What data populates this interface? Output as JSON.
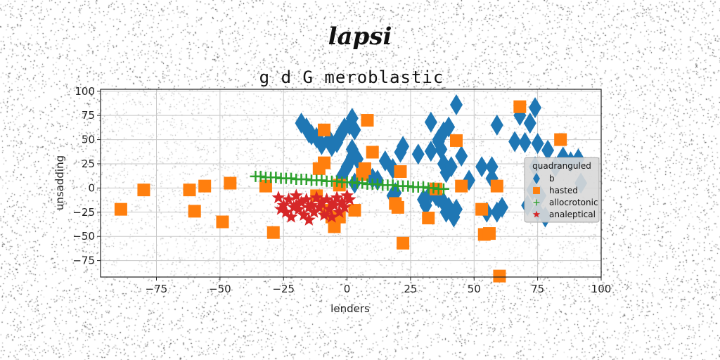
{
  "suptitle": "lapsi",
  "chart_data": {
    "type": "scatter",
    "title": "g d G meroblastic",
    "xlabel": "lenders",
    "ylabel": "unsadding",
    "xlim": [
      -97,
      100
    ],
    "ylim": [
      -92,
      102
    ],
    "xticks": [
      -75,
      -50,
      -25,
      0,
      25,
      50,
      75,
      100
    ],
    "yticks": [
      -75,
      -50,
      -25,
      0,
      25,
      50,
      75,
      100
    ],
    "grid": true,
    "legend": {
      "title": "quadranguled",
      "placement": "right"
    },
    "series": [
      {
        "name": "b",
        "marker": "diamond",
        "color": "#1f77b4",
        "points": [
          [
            -18,
            67
          ],
          [
            -16,
            62
          ],
          [
            -15,
            57
          ],
          [
            -14,
            55
          ],
          [
            -12,
            52
          ],
          [
            -10,
            45
          ],
          [
            -7,
            50
          ],
          [
            -6,
            43
          ],
          [
            -4,
            47
          ],
          [
            -3,
            53
          ],
          [
            -2,
            58
          ],
          [
            -1,
            62
          ],
          [
            1,
            65
          ],
          [
            2,
            40
          ],
          [
            2,
            32
          ],
          [
            0,
            22
          ],
          [
            -2,
            12
          ],
          [
            3,
            5
          ],
          [
            2,
            72
          ],
          [
            3,
            60
          ],
          [
            4,
            30
          ],
          [
            15,
            28
          ],
          [
            18,
            20
          ],
          [
            21,
            37
          ],
          [
            22,
            43
          ],
          [
            28,
            35
          ],
          [
            33,
            68
          ],
          [
            33,
            38
          ],
          [
            36,
            50
          ],
          [
            36,
            48
          ],
          [
            37,
            40
          ],
          [
            38,
            58
          ],
          [
            38,
            25
          ],
          [
            39,
            16
          ],
          [
            40,
            63
          ],
          [
            43,
            86
          ],
          [
            41,
            22
          ],
          [
            45,
            33
          ],
          [
            48,
            8
          ],
          [
            53,
            22
          ],
          [
            59,
            65
          ],
          [
            57,
            22
          ],
          [
            57,
            10
          ],
          [
            66,
            48
          ],
          [
            68,
            75
          ],
          [
            70,
            47
          ],
          [
            72,
            67
          ],
          [
            74,
            83
          ],
          [
            75,
            46
          ],
          [
            74,
            22
          ],
          [
            79,
            39
          ],
          [
            82,
            22
          ],
          [
            85,
            32
          ],
          [
            88,
            27
          ],
          [
            91,
            30
          ],
          [
            92,
            5
          ],
          [
            73,
            -2
          ],
          [
            76,
            -8
          ],
          [
            78,
            -30
          ],
          [
            75,
            -24
          ],
          [
            71,
            -18
          ],
          [
            33,
            -5
          ],
          [
            35,
            -8
          ],
          [
            36,
            -10
          ],
          [
            38,
            -15
          ],
          [
            39,
            -25
          ],
          [
            40,
            -20
          ],
          [
            42,
            -30
          ],
          [
            43,
            -22
          ],
          [
            30,
            -12
          ],
          [
            31,
            -18
          ],
          [
            18,
            -8
          ],
          [
            19,
            -5
          ],
          [
            55,
            -25
          ],
          [
            59,
            -25
          ],
          [
            61,
            -20
          ],
          [
            10,
            10
          ],
          [
            12,
            8
          ]
        ]
      },
      {
        "name": "hasted",
        "marker": "square",
        "color": "#ff7f0e",
        "points": [
          [
            -89,
            -22
          ],
          [
            -80,
            -2
          ],
          [
            -62,
            -2
          ],
          [
            -60,
            -24
          ],
          [
            -56,
            2
          ],
          [
            -49,
            -35
          ],
          [
            -46,
            5
          ],
          [
            -32,
            2
          ],
          [
            -29,
            -46
          ],
          [
            -12,
            -8
          ],
          [
            -11,
            20
          ],
          [
            -9,
            26
          ],
          [
            -9,
            60
          ],
          [
            -8,
            -23
          ],
          [
            -5,
            -40
          ],
          [
            -6,
            -30
          ],
          [
            -3,
            -30
          ],
          [
            -3,
            3
          ],
          [
            3,
            -23
          ],
          [
            6,
            14
          ],
          [
            7,
            20
          ],
          [
            8,
            70
          ],
          [
            10,
            37
          ],
          [
            19,
            -16
          ],
          [
            20,
            -20
          ],
          [
            21,
            17
          ],
          [
            22,
            -57
          ],
          [
            32,
            -31
          ],
          [
            35,
            -1
          ],
          [
            43,
            49
          ],
          [
            45,
            2
          ],
          [
            53,
            -22
          ],
          [
            54,
            -48
          ],
          [
            56,
            -47
          ],
          [
            59,
            2
          ],
          [
            60,
            -91
          ],
          [
            68,
            84
          ],
          [
            84,
            50
          ]
        ]
      },
      {
        "name": "allocrotonic",
        "marker": "plus",
        "color": "#2ca02c",
        "points": [
          [
            -36,
            12
          ],
          [
            -34,
            12
          ],
          [
            -32,
            11
          ],
          [
            -30,
            11
          ],
          [
            -28,
            11
          ],
          [
            -26,
            10
          ],
          [
            -24,
            10
          ],
          [
            -22,
            10
          ],
          [
            -20,
            9
          ],
          [
            -18,
            9
          ],
          [
            -16,
            9
          ],
          [
            -14,
            8
          ],
          [
            -12,
            8
          ],
          [
            -10,
            8
          ],
          [
            -8,
            7
          ],
          [
            -6,
            7
          ],
          [
            -4,
            7
          ],
          [
            -2,
            6
          ],
          [
            0,
            6
          ],
          [
            2,
            6
          ],
          [
            4,
            5
          ],
          [
            6,
            5
          ],
          [
            8,
            4
          ],
          [
            10,
            4
          ],
          [
            12,
            4
          ],
          [
            14,
            3
          ],
          [
            16,
            3
          ],
          [
            18,
            3
          ],
          [
            20,
            2
          ],
          [
            22,
            2
          ],
          [
            24,
            2
          ],
          [
            26,
            1
          ],
          [
            28,
            1
          ],
          [
            30,
            1
          ],
          [
            32,
            0
          ],
          [
            34,
            0
          ],
          [
            36,
            -1
          ],
          [
            38,
            -1
          ]
        ]
      },
      {
        "name": "analeptical",
        "marker": "star",
        "color": "#d62728",
        "points": [
          [
            -27,
            -10
          ],
          [
            -25,
            -18
          ],
          [
            -24,
            -25
          ],
          [
            -23,
            -12
          ],
          [
            -22,
            -30
          ],
          [
            -21,
            -20
          ],
          [
            -20,
            -8
          ],
          [
            -19,
            -22
          ],
          [
            -18,
            -15
          ],
          [
            -17,
            -28
          ],
          [
            -16,
            -12
          ],
          [
            -15,
            -33
          ],
          [
            -14,
            -18
          ],
          [
            -13,
            -25
          ],
          [
            -12,
            -10
          ],
          [
            -11,
            -20
          ],
          [
            -10,
            -15
          ],
          [
            -9,
            -28
          ],
          [
            -8,
            -12
          ],
          [
            -7,
            -22
          ],
          [
            -6,
            -30
          ],
          [
            -5,
            -18
          ],
          [
            -4,
            -10
          ],
          [
            -3,
            -25
          ],
          [
            -2,
            -15
          ],
          [
            -1,
            -20
          ],
          [
            0,
            -8
          ],
          [
            1,
            -12
          ],
          [
            -20,
            -18
          ],
          [
            -15,
            -20
          ],
          [
            -6,
            -16
          ],
          [
            -26,
            -22
          ]
        ]
      }
    ]
  }
}
